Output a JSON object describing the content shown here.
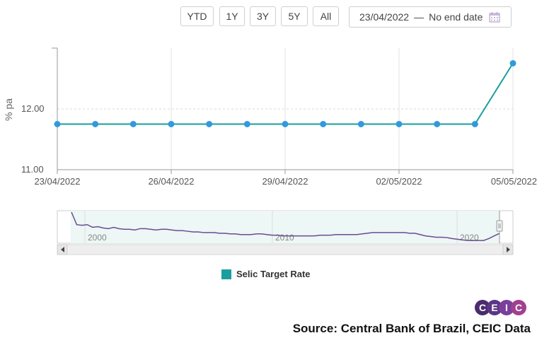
{
  "range_buttons": [
    "YTD",
    "1Y",
    "3Y",
    "5Y",
    "All"
  ],
  "date_range": {
    "start": "23/04/2022",
    "separator": "—",
    "end": "No end date"
  },
  "chart_data": {
    "type": "line",
    "ylabel": "% pa",
    "ylim": [
      11.0,
      13.0
    ],
    "yticks": [
      11.0,
      12.0
    ],
    "ytick_labels": [
      "11.00",
      "12.00"
    ],
    "x_dates": [
      "23/04/2022",
      "24/04/2022",
      "25/04/2022",
      "26/04/2022",
      "27/04/2022",
      "28/04/2022",
      "29/04/2022",
      "30/04/2022",
      "01/05/2022",
      "02/05/2022",
      "03/05/2022",
      "04/05/2022",
      "05/05/2022"
    ],
    "xtick_labels": [
      "23/04/2022",
      "26/04/2022",
      "29/04/2022",
      "02/05/2022",
      "05/05/2022"
    ],
    "series": [
      {
        "name": "Selic Target Rate",
        "color": "#1a9e9e",
        "marker_color": "#3399dd",
        "values": [
          11.75,
          11.75,
          11.75,
          11.75,
          11.75,
          11.75,
          11.75,
          11.75,
          11.75,
          11.75,
          11.75,
          11.75,
          12.75
        ]
      }
    ],
    "grid": "vertical",
    "legend_position": "bottom-center"
  },
  "navigator": {
    "year_labels": [
      "2000",
      "2010",
      "2020"
    ],
    "line_color": "#6a4c93",
    "history": [
      45,
      26,
      25,
      26,
      22,
      23,
      21,
      20,
      22,
      20,
      19,
      19,
      18,
      20,
      20,
      19,
      18,
      19,
      19,
      18,
      17,
      17,
      16,
      15,
      15,
      14,
      14,
      14,
      13,
      13,
      12,
      12,
      11,
      11,
      11,
      12,
      12,
      11,
      10,
      10,
      9,
      9,
      9,
      9,
      9,
      9,
      9,
      10,
      10,
      10,
      11,
      11,
      11,
      11,
      11,
      12,
      13,
      14,
      14,
      14,
      14,
      14,
      14,
      14,
      13,
      13,
      11,
      9,
      8,
      7,
      7,
      6.5,
      5,
      4,
      3,
      2,
      2,
      2,
      2,
      5,
      9,
      12.75
    ]
  },
  "legend": {
    "label": "Selic Target Rate",
    "color": "#1a9e9e"
  },
  "logo": {
    "letters": [
      "C",
      "E",
      "I",
      "C"
    ],
    "colors": [
      "#4a2c6e",
      "#5b3585",
      "#7a3f9d",
      "#a0418f"
    ]
  },
  "source": "Source: Central Bank of Brazil, CEIC Data"
}
